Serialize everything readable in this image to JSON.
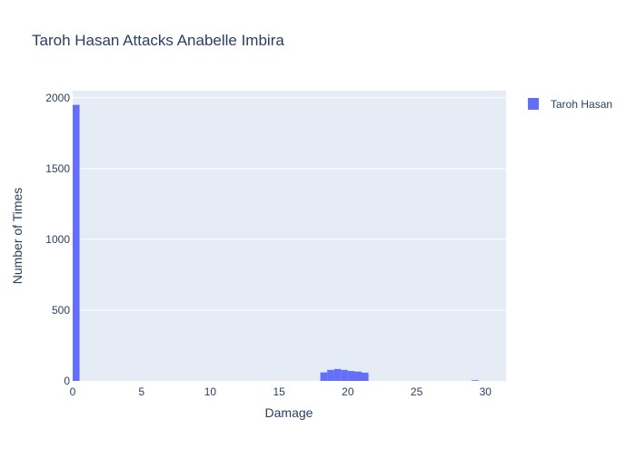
{
  "chart_data": {
    "type": "bar",
    "title": "Taroh Hasan Attacks Anabelle Imbira",
    "xlabel": "Damage",
    "ylabel": "Number of Times",
    "xlim": [
      0,
      31.5
    ],
    "ylim": [
      0,
      2050
    ],
    "x_ticks": [
      0,
      5,
      10,
      15,
      20,
      25,
      30
    ],
    "x_tick_labels": [
      "0",
      "5",
      "10",
      "15",
      "20",
      "25",
      "30"
    ],
    "y_ticks": [
      0,
      500,
      1000,
      1500,
      2000
    ],
    "y_tick_labels": [
      "0",
      "500",
      "1000",
      "1500",
      "2000"
    ],
    "grid": true,
    "legend_position": "top-right",
    "series": [
      {
        "name": "Taroh Hasan",
        "color": "#636efa",
        "bin_width": 0.5,
        "bins": [
          {
            "x": 0.0,
            "value": 1950
          },
          {
            "x": 18.0,
            "value": 60
          },
          {
            "x": 18.5,
            "value": 78
          },
          {
            "x": 19.0,
            "value": 84
          },
          {
            "x": 19.5,
            "value": 78
          },
          {
            "x": 20.0,
            "value": 70
          },
          {
            "x": 20.5,
            "value": 66
          },
          {
            "x": 21.0,
            "value": 58
          },
          {
            "x": 29.0,
            "value": 5
          }
        ]
      }
    ]
  }
}
